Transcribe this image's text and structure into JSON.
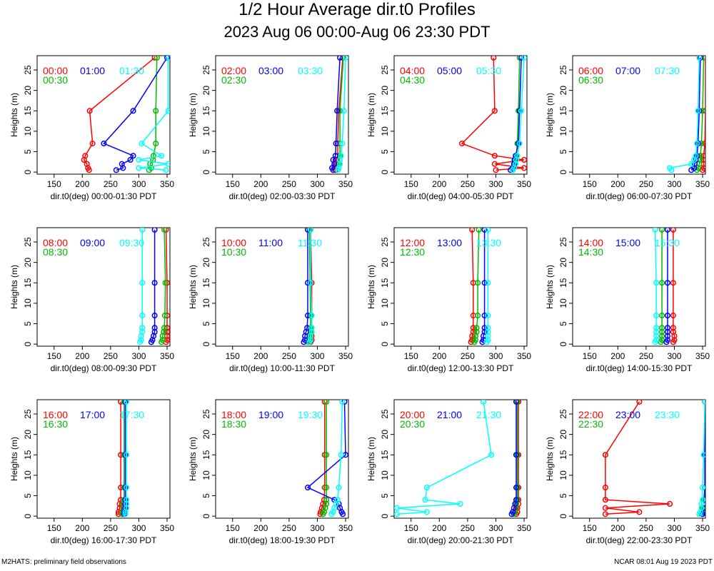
{
  "title": "1/2 Hour Average dir.t0 Profiles",
  "subtitle": "2023 Aug 06 00:00-Aug 06 23:30 PDT",
  "footer_left": "M2HATS: preliminary field observations",
  "footer_right": "NCAR 08:01 Aug 19 2023 PDT",
  "series_colors": [
    "#ff0000",
    "#00bb00",
    "#0000ff",
    "#00ffff"
  ],
  "chart_data": [
    {
      "type": "line",
      "xlabel": "dir.t0(deg) 00:00-01:30 PDT",
      "ylabel": "Heights (m)",
      "xlim": [
        120,
        355
      ],
      "ylim": [
        -0.5,
        28.5
      ],
      "xticks": [
        150,
        200,
        250,
        300,
        350
      ],
      "yticks": [
        0,
        5,
        10,
        15,
        20,
        25
      ],
      "heights": [
        0.5,
        1,
        2,
        3,
        4,
        7,
        15,
        28
      ],
      "series": [
        {
          "name": "00:00",
          "values": [
            212,
            210,
            208,
            203,
            205,
            218,
            213,
            328
          ]
        },
        {
          "name": "00:30",
          "values": [
            318,
            322,
            320,
            325,
            326,
            330,
            330,
            332
          ]
        },
        {
          "name": "01:00",
          "values": [
            260,
            272,
            270,
            285,
            290,
            238,
            290,
            350
          ]
        },
        {
          "name": "01:30",
          "values": [
            348,
            300,
            352,
            300,
            340,
            305,
            352,
            352
          ]
        }
      ]
    },
    {
      "type": "line",
      "xlabel": "dir.t0(deg) 02:00-03:30 PDT",
      "ylabel": "Heights (m)",
      "xlim": [
        120,
        355
      ],
      "ylim": [
        -0.5,
        28.5
      ],
      "xticks": [
        150,
        200,
        250,
        300,
        350
      ],
      "yticks": [
        0,
        5,
        10,
        15,
        20,
        25
      ],
      "heights": [
        0.5,
        1,
        2,
        3,
        4,
        7,
        15,
        28
      ],
      "series": [
        {
          "name": "02:00",
          "values": [
            332,
            330,
            332,
            334,
            336,
            336,
            338,
            345
          ]
        },
        {
          "name": "02:30",
          "values": [
            336,
            338,
            338,
            340,
            340,
            340,
            340,
            346
          ]
        },
        {
          "name": "03:00",
          "values": [
            328,
            326,
            330,
            328,
            332,
            333,
            335,
            340
          ]
        },
        {
          "name": "03:30",
          "values": [
            336,
            338,
            340,
            340,
            342,
            344,
            347,
            350
          ]
        }
      ]
    },
    {
      "type": "line",
      "xlabel": "dir.t0(deg) 04:00-05:30 PDT",
      "ylabel": "Heights (m)",
      "xlim": [
        120,
        355
      ],
      "ylim": [
        -0.5,
        28.5
      ],
      "xticks": [
        150,
        200,
        250,
        300,
        350
      ],
      "yticks": [
        0,
        5,
        10,
        15,
        20,
        25
      ],
      "heights": [
        0.5,
        1,
        2,
        3,
        4,
        7,
        15,
        28
      ],
      "series": [
        {
          "name": "04:00",
          "values": [
            300,
            350,
            298,
            350,
            298,
            240,
            298,
            296
          ]
        },
        {
          "name": "04:30",
          "values": [
            330,
            332,
            333,
            334,
            336,
            338,
            340,
            342
          ]
        },
        {
          "name": "05:00",
          "values": [
            326,
            330,
            332,
            333,
            335,
            340,
            342,
            345
          ]
        },
        {
          "name": "05:30",
          "values": [
            330,
            332,
            335,
            336,
            338,
            342,
            345,
            350
          ]
        }
      ]
    },
    {
      "type": "line",
      "xlabel": "dir.t0(deg) 06:00-07:30 PDT",
      "ylabel": "Heights (m)",
      "xlim": [
        120,
        355
      ],
      "ylim": [
        -0.5,
        28.5
      ],
      "xticks": [
        150,
        200,
        250,
        300,
        350
      ],
      "yticks": [
        0,
        5,
        10,
        15,
        20,
        25
      ],
      "heights": [
        0.5,
        1,
        2,
        3,
        4,
        7,
        15,
        28
      ],
      "series": [
        {
          "name": "06:00",
          "values": [
            350,
            352,
            352,
            352,
            352,
            354,
            355,
            355
          ]
        },
        {
          "name": "06:30",
          "values": [
            340,
            342,
            344,
            346,
            346,
            348,
            350,
            352
          ]
        },
        {
          "name": "07:00",
          "values": [
            330,
            335,
            336,
            338,
            340,
            342,
            344,
            346
          ]
        },
        {
          "name": "07:30",
          "values": [
            295,
            292,
            330,
            335,
            338,
            340,
            342,
            344
          ]
        }
      ]
    },
    {
      "type": "line",
      "xlabel": "dir.t0(deg) 08:00-09:30 PDT",
      "ylabel": "Heights (m)",
      "xlim": [
        120,
        355
      ],
      "ylim": [
        -0.5,
        28.5
      ],
      "xticks": [
        150,
        200,
        250,
        300,
        350
      ],
      "yticks": [
        0,
        5,
        10,
        15,
        20,
        25
      ],
      "heights": [
        0.5,
        1,
        2,
        3,
        4,
        7,
        15,
        28
      ],
      "series": [
        {
          "name": "08:00",
          "values": [
            348,
            350,
            350,
            350,
            350,
            350,
            350,
            348
          ]
        },
        {
          "name": "08:30",
          "values": [
            340,
            342,
            342,
            344,
            345,
            346,
            347,
            345
          ]
        },
        {
          "name": "09:00",
          "values": [
            322,
            324,
            326,
            328,
            328,
            328,
            328,
            328
          ]
        },
        {
          "name": "09:30",
          "values": [
            302,
            304,
            304,
            306,
            306,
            306,
            306,
            306
          ]
        }
      ]
    },
    {
      "type": "line",
      "xlabel": "dir.t0(deg) 10:00-11:30 PDT",
      "ylabel": "Heights (m)",
      "xlim": [
        120,
        355
      ],
      "ylim": [
        -0.5,
        28.5
      ],
      "xticks": [
        150,
        200,
        250,
        300,
        350
      ],
      "yticks": [
        0,
        5,
        10,
        15,
        20,
        25
      ],
      "heights": [
        0.5,
        1,
        2,
        3,
        4,
        7,
        15,
        28
      ],
      "series": [
        {
          "name": "10:00",
          "values": [
            288,
            290,
            290,
            290,
            290,
            290,
            290,
            288
          ]
        },
        {
          "name": "10:30",
          "values": [
            284,
            286,
            286,
            288,
            288,
            288,
            287,
            286
          ]
        },
        {
          "name": "11:00",
          "values": [
            276,
            278,
            278,
            280,
            282,
            283,
            283,
            283
          ]
        },
        {
          "name": "11:30",
          "values": [
            286,
            288,
            288,
            290,
            290,
            290,
            288,
            288
          ]
        }
      ]
    },
    {
      "type": "line",
      "xlabel": "dir.t0(deg) 12:00-13:30 PDT",
      "ylabel": "Heights (m)",
      "xlim": [
        120,
        355
      ],
      "ylim": [
        -0.5,
        28.5
      ],
      "xticks": [
        150,
        200,
        250,
        300,
        350
      ],
      "yticks": [
        0,
        5,
        10,
        15,
        20,
        25
      ],
      "heights": [
        0.5,
        1,
        2,
        3,
        4,
        7,
        15,
        28
      ],
      "series": [
        {
          "name": "12:00",
          "values": [
            256,
            258,
            258,
            260,
            260,
            260,
            260,
            258
          ]
        },
        {
          "name": "12:30",
          "values": [
            262,
            264,
            264,
            266,
            266,
            268,
            268,
            270
          ]
        },
        {
          "name": "13:00",
          "values": [
            276,
            278,
            278,
            280,
            280,
            280,
            280,
            280
          ]
        },
        {
          "name": "13:30",
          "values": [
            284,
            286,
            286,
            286,
            286,
            286,
            286,
            286
          ]
        }
      ]
    },
    {
      "type": "line",
      "xlabel": "dir.t0(deg) 14:00-15:30 PDT",
      "ylabel": "Heights (m)",
      "xlim": [
        120,
        355
      ],
      "ylim": [
        -0.5,
        28.5
      ],
      "xticks": [
        150,
        200,
        250,
        300,
        350
      ],
      "yticks": [
        0,
        5,
        10,
        15,
        20,
        25
      ],
      "heights": [
        0.5,
        1,
        2,
        3,
        4,
        7,
        15,
        28
      ],
      "series": [
        {
          "name": "14:00",
          "values": [
            298,
            300,
            300,
            298,
            298,
            298,
            298,
            298
          ]
        },
        {
          "name": "14:30",
          "values": [
            276,
            278,
            278,
            278,
            278,
            278,
            278,
            278
          ]
        },
        {
          "name": "15:00",
          "values": [
            286,
            288,
            288,
            288,
            288,
            288,
            288,
            288
          ]
        },
        {
          "name": "15:30",
          "values": [
            266,
            268,
            268,
            268,
            268,
            268,
            268,
            266
          ]
        }
      ]
    },
    {
      "type": "line",
      "xlabel": "dir.t0(deg) 16:00-17:30 PDT",
      "ylabel": "Heights (m)",
      "xlim": [
        120,
        355
      ],
      "ylim": [
        -0.5,
        28.5
      ],
      "xticks": [
        150,
        200,
        250,
        300,
        350
      ],
      "yticks": [
        0,
        5,
        10,
        15,
        20,
        25
      ],
      "heights": [
        0.5,
        1,
        2,
        3,
        4,
        7,
        15,
        28
      ],
      "series": [
        {
          "name": "16:00",
          "values": [
            264,
            264,
            266,
            266,
            268,
            268,
            268,
            268
          ]
        },
        {
          "name": "16:30",
          "values": [
            270,
            272,
            272,
            272,
            274,
            274,
            274,
            274
          ]
        },
        {
          "name": "17:00",
          "values": [
            274,
            274,
            276,
            276,
            276,
            276,
            276,
            276
          ]
        },
        {
          "name": "17:30",
          "values": [
            276,
            276,
            278,
            278,
            278,
            278,
            278,
            278
          ]
        }
      ]
    },
    {
      "type": "line",
      "xlabel": "dir.t0(deg) 18:00-19:30 PDT",
      "ylabel": "Heights (m)",
      "xlim": [
        120,
        355
      ],
      "ylim": [
        -0.5,
        28.5
      ],
      "xticks": [
        150,
        200,
        250,
        300,
        350
      ],
      "yticks": [
        0,
        5,
        10,
        15,
        20,
        25
      ],
      "heights": [
        0.5,
        1,
        2,
        3,
        4,
        7,
        15,
        28
      ],
      "series": [
        {
          "name": "18:00",
          "values": [
            305,
            306,
            308,
            310,
            312,
            313,
            313,
            313
          ]
        },
        {
          "name": "18:30",
          "values": [
            310,
            312,
            314,
            316,
            316,
            316,
            316,
            316
          ]
        },
        {
          "name": "19:00",
          "values": [
            345,
            343,
            340,
            338,
            330,
            283,
            350,
            348
          ]
        },
        {
          "name": "19:30",
          "values": [
            325,
            328,
            330,
            333,
            336,
            338,
            342,
            344
          ]
        }
      ]
    },
    {
      "type": "line",
      "xlabel": "dir.t0(deg) 20:00-21:30 PDT",
      "ylabel": "Heights (m)",
      "xlim": [
        120,
        355
      ],
      "ylim": [
        -0.5,
        28.5
      ],
      "xticks": [
        150,
        200,
        250,
        300,
        350
      ],
      "yticks": [
        0,
        5,
        10,
        15,
        20,
        25
      ],
      "heights": [
        0.5,
        1,
        2,
        3,
        4,
        7,
        15,
        28
      ],
      "series": [
        {
          "name": "20:00",
          "values": [
            336,
            338,
            338,
            340,
            340,
            340,
            340,
            340
          ]
        },
        {
          "name": "20:30",
          "values": [
            332,
            334,
            336,
            336,
            338,
            338,
            338,
            338
          ]
        },
        {
          "name": "21:00",
          "values": [
            328,
            330,
            332,
            334,
            336,
            336,
            336,
            336
          ]
        },
        {
          "name": "21:30",
          "values": [
            125,
            178,
            125,
            237,
            175,
            178,
            292,
            278
          ]
        }
      ]
    },
    {
      "type": "line",
      "xlabel": "dir.t0(deg) 22:00-23:30 PDT",
      "ylabel": "Heights (m)",
      "xlim": [
        120,
        355
      ],
      "ylim": [
        -0.5,
        28.5
      ],
      "xticks": [
        150,
        200,
        250,
        300,
        350
      ],
      "yticks": [
        0,
        5,
        10,
        15,
        20,
        25
      ],
      "heights": [
        0.5,
        1,
        2,
        3,
        4,
        7,
        15,
        28
      ],
      "series": [
        {
          "name": "22:00",
          "values": [
            178,
            238,
            178,
            292,
            178,
            178,
            178,
            238
          ]
        },
        {
          "name": "22:30",
          "values": [
            348,
            350,
            350,
            352,
            352,
            354,
            354,
            354
          ]
        },
        {
          "name": "23:00",
          "values": [
            350,
            352,
            352,
            352,
            354,
            354,
            354,
            354
          ]
        },
        {
          "name": "23:30",
          "values": [
            344,
            346,
            348,
            348,
            350,
            350,
            352,
            354
          ]
        }
      ]
    }
  ]
}
